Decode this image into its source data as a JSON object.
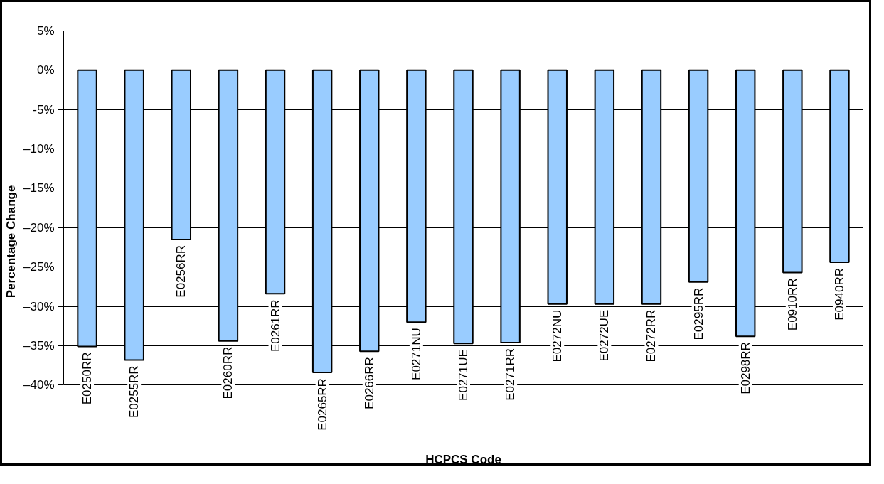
{
  "chart_data": {
    "type": "bar",
    "xlabel": "HCPCS Code",
    "ylabel": "Percentage Change",
    "categories": [
      "E0250RR",
      "E0255RR",
      "E0256RR",
      "E0260RR",
      "E0261RR",
      "E0265RR",
      "E0266RR",
      "E0271NU",
      "E0271UE",
      "E0271RR",
      "E0272NU",
      "E0272UE",
      "E0272RR",
      "E0295RR",
      "E0298RR",
      "E0910RR",
      "E0940RR"
    ],
    "values": [
      -35.1,
      -36.8,
      -21.5,
      -34.4,
      -28.4,
      -38.4,
      -35.7,
      -32.0,
      -34.7,
      -34.6,
      -29.7,
      -29.7,
      -29.7,
      -26.9,
      -33.8,
      -25.7,
      -24.4
    ],
    "color": "#99ccff",
    "ylim": [
      -40,
      5
    ],
    "yticks": [
      {
        "value": 5,
        "label": "5%"
      },
      {
        "value": 0,
        "label": "0%"
      },
      {
        "value": -5,
        "label": "-5%"
      },
      {
        "value": -10,
        "label": "–10%"
      },
      {
        "value": -15,
        "label": "–15%"
      },
      {
        "value": -20,
        "label": "–20%"
      },
      {
        "value": -25,
        "label": "–25%"
      },
      {
        "value": -30,
        "label": "–30%"
      },
      {
        "value": -35,
        "label": "–35%"
      },
      {
        "value": -40,
        "label": "–40%"
      }
    ],
    "grid": "y"
  }
}
